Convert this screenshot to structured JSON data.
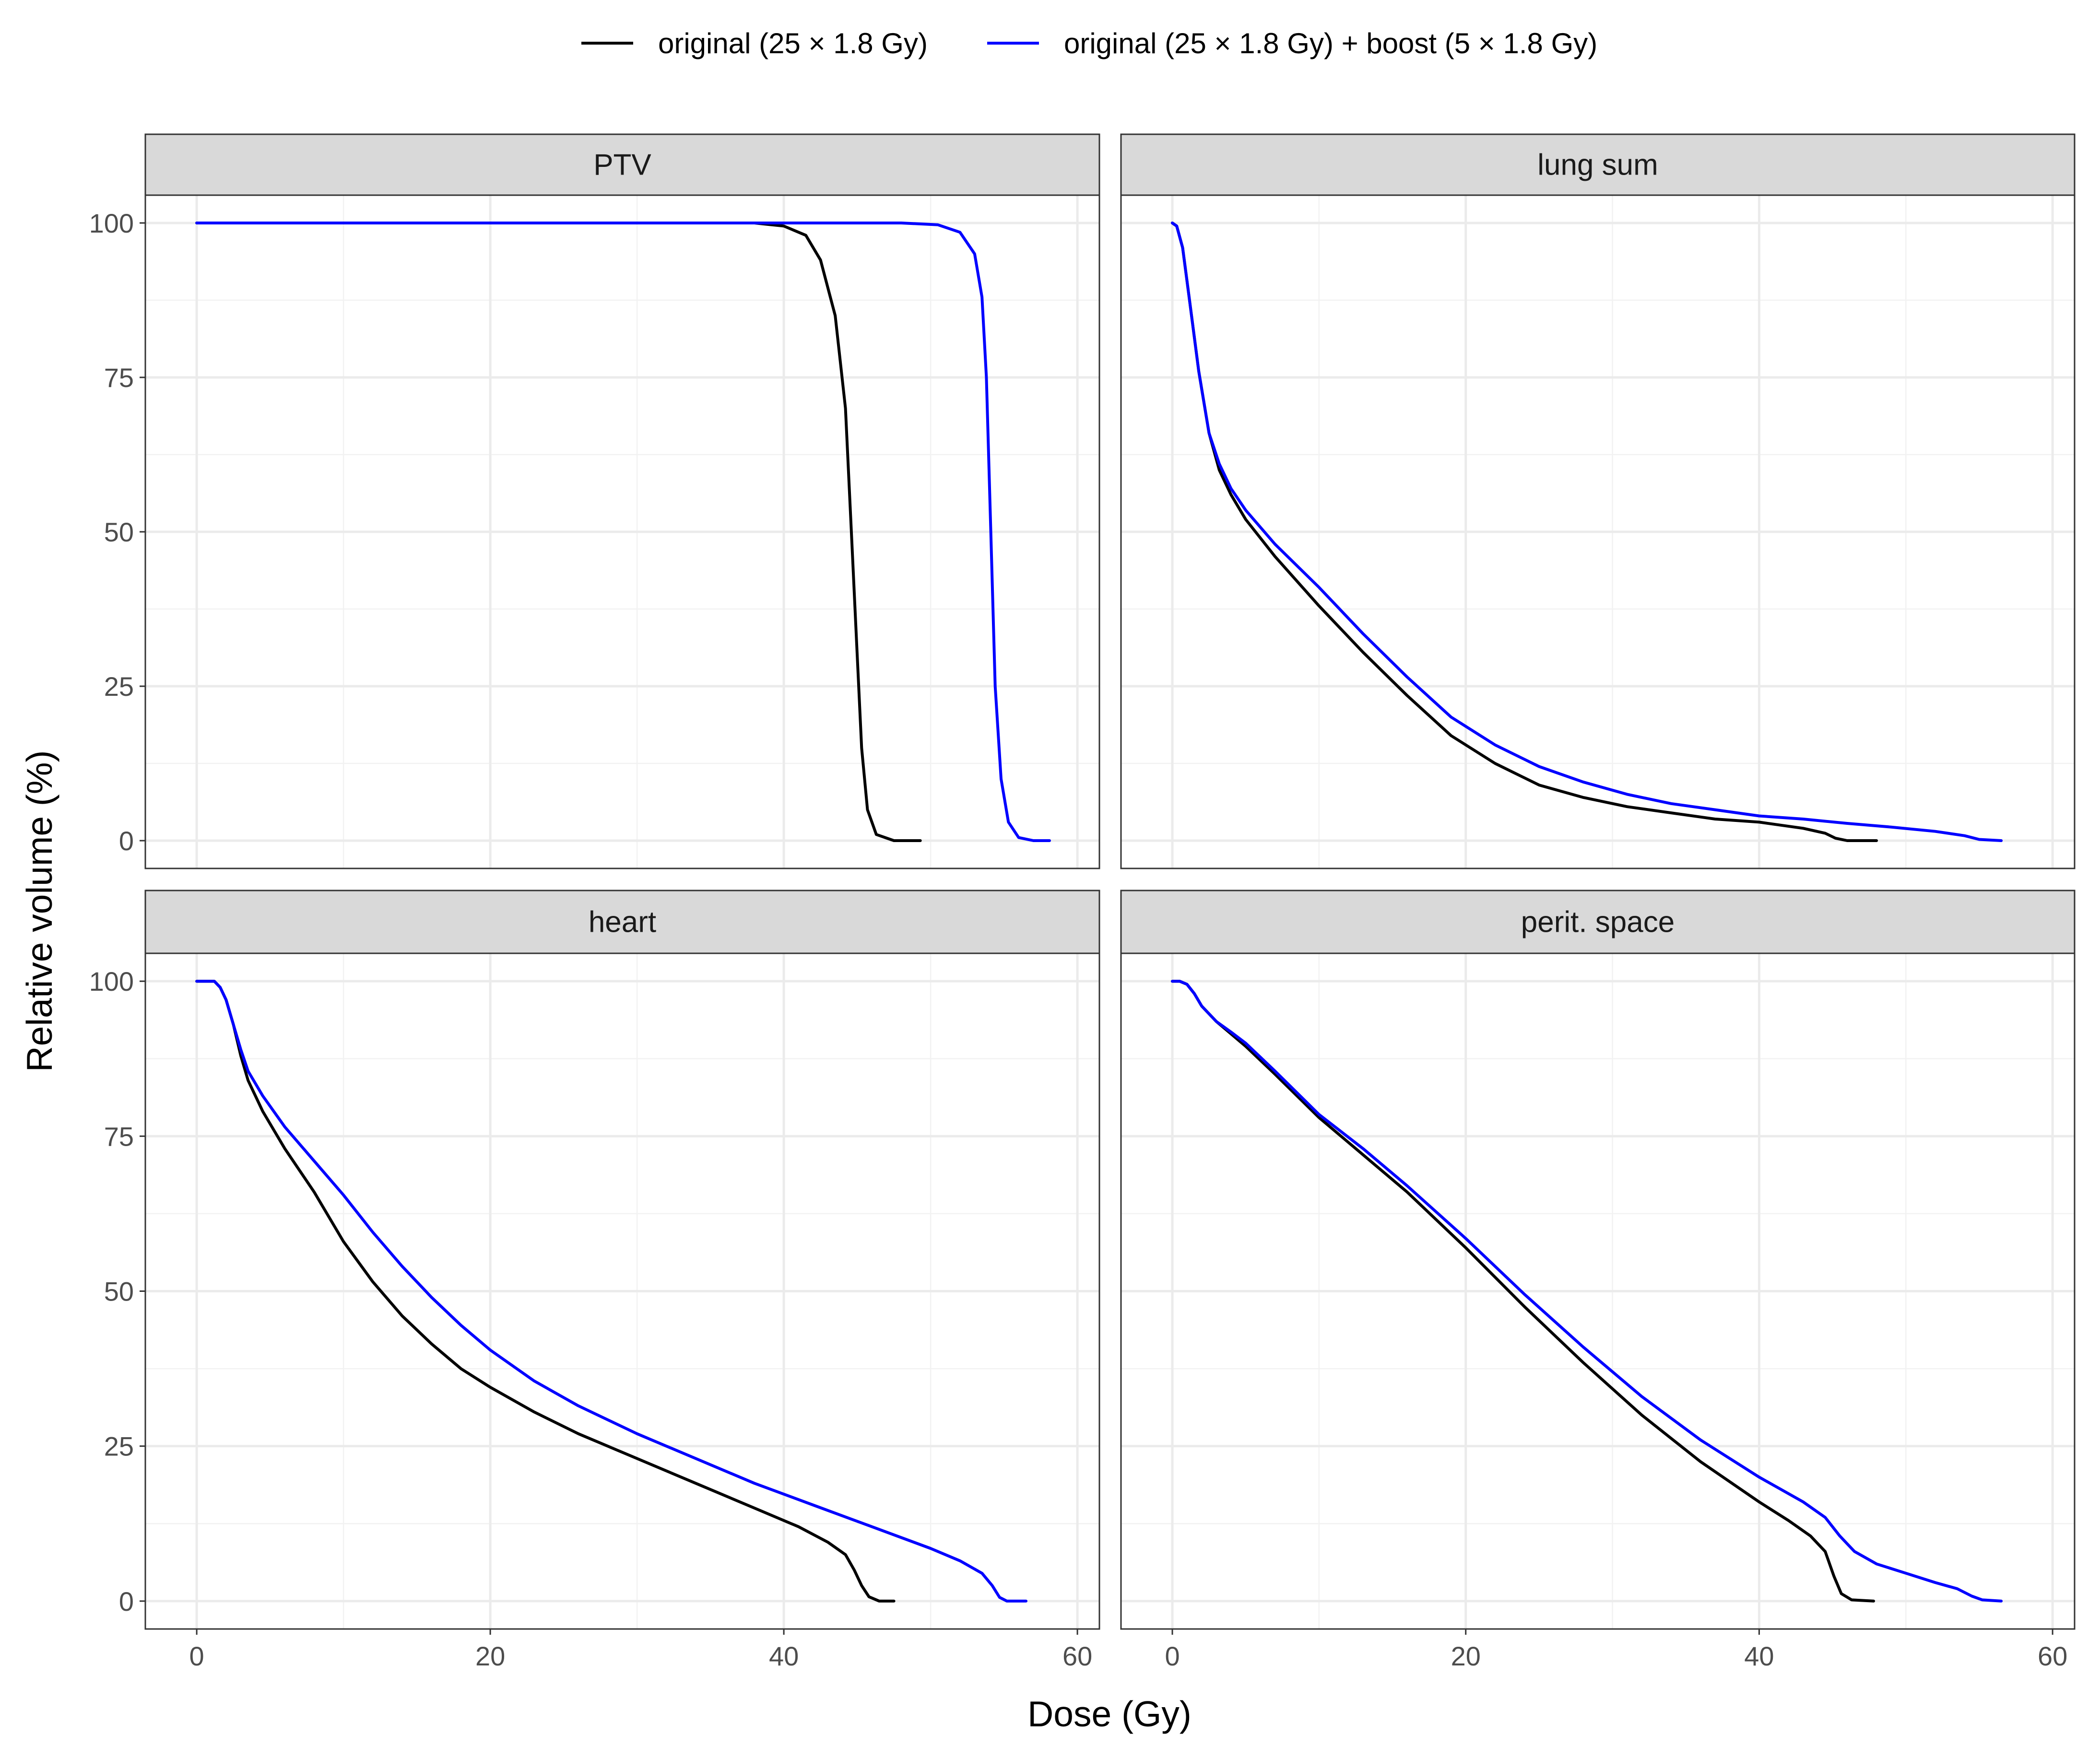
{
  "chart_data": {
    "type": "line",
    "xlabel": "Dose (Gy)",
    "ylabel": "Relative volume (%)",
    "xlim": [
      -3.5,
      61.5
    ],
    "ylim": [
      -4.5,
      104.5
    ],
    "x_ticks": [
      0,
      20,
      40,
      60
    ],
    "y_ticks": [
      0,
      25,
      50,
      75,
      100
    ],
    "grid": true,
    "legend": "top",
    "series_legend": [
      {
        "name": "original (25 × 1.8 Gy)",
        "color": "#000000"
      },
      {
        "name": "original (25 × 1.8 Gy) + boost (5 × 1.8 Gy)",
        "color": "#0000FF"
      }
    ],
    "panels": [
      {
        "title": "PTV",
        "series": [
          {
            "name": "original (25 × 1.8 Gy)",
            "color": "#000000",
            "points": [
              [
                0,
                100
              ],
              [
                38,
                100
              ],
              [
                40,
                99.5
              ],
              [
                41.5,
                98
              ],
              [
                42.5,
                94
              ],
              [
                43.5,
                85
              ],
              [
                44.2,
                70
              ],
              [
                44.6,
                50
              ],
              [
                45,
                30
              ],
              [
                45.3,
                15
              ],
              [
                45.7,
                5
              ],
              [
                46.3,
                1
              ],
              [
                47.5,
                0
              ],
              [
                49.3,
                0
              ]
            ]
          },
          {
            "name": "original (25 × 1.8 Gy) + boost (5 × 1.8 Gy)",
            "color": "#0000FF",
            "points": [
              [
                0,
                100
              ],
              [
                48,
                100
              ],
              [
                50.5,
                99.7
              ],
              [
                52,
                98.5
              ],
              [
                53,
                95
              ],
              [
                53.5,
                88
              ],
              [
                53.8,
                75
              ],
              [
                54.1,
                50
              ],
              [
                54.4,
                25
              ],
              [
                54.8,
                10
              ],
              [
                55.3,
                3
              ],
              [
                56,
                0.5
              ],
              [
                57,
                0
              ],
              [
                58.1,
                0
              ]
            ]
          }
        ]
      },
      {
        "title": "lung sum",
        "series": [
          {
            "name": "original (25 × 1.8 Gy)",
            "color": "#000000",
            "points": [
              [
                0,
                100
              ],
              [
                0.3,
                99.5
              ],
              [
                0.7,
                96
              ],
              [
                1.2,
                87
              ],
              [
                1.8,
                76
              ],
              [
                2.5,
                66
              ],
              [
                3.2,
                60
              ],
              [
                4,
                56
              ],
              [
                5,
                52
              ],
              [
                7,
                46
              ],
              [
                10,
                38
              ],
              [
                13,
                30.5
              ],
              [
                16,
                23.5
              ],
              [
                19,
                17
              ],
              [
                22,
                12.5
              ],
              [
                25,
                9
              ],
              [
                28,
                7
              ],
              [
                31,
                5.5
              ],
              [
                34,
                4.5
              ],
              [
                37,
                3.5
              ],
              [
                40,
                3
              ],
              [
                43,
                2
              ],
              [
                44.5,
                1.2
              ],
              [
                45.2,
                0.4
              ],
              [
                46,
                0
              ],
              [
                48,
                0
              ]
            ]
          },
          {
            "name": "original (25 × 1.8 Gy) + boost (5 × 1.8 Gy)",
            "color": "#0000FF",
            "points": [
              [
                0,
                100
              ],
              [
                0.3,
                99.5
              ],
              [
                0.7,
                96
              ],
              [
                1.2,
                87
              ],
              [
                1.8,
                76
              ],
              [
                2.5,
                66
              ],
              [
                3.2,
                61
              ],
              [
                4,
                57
              ],
              [
                5,
                53.5
              ],
              [
                7,
                48
              ],
              [
                10,
                41
              ],
              [
                13,
                33.5
              ],
              [
                16,
                26.5
              ],
              [
                19,
                20
              ],
              [
                22,
                15.5
              ],
              [
                25,
                12
              ],
              [
                28,
                9.5
              ],
              [
                31,
                7.5
              ],
              [
                34,
                6
              ],
              [
                37,
                5
              ],
              [
                40,
                4
              ],
              [
                43,
                3.5
              ],
              [
                46,
                2.8
              ],
              [
                49,
                2.2
              ],
              [
                52,
                1.5
              ],
              [
                54,
                0.8
              ],
              [
                55,
                0.2
              ],
              [
                56.5,
                0
              ]
            ]
          }
        ]
      },
      {
        "title": "heart",
        "series": [
          {
            "name": "original (25 × 1.8 Gy)",
            "color": "#000000",
            "points": [
              [
                0,
                100
              ],
              [
                1.2,
                100
              ],
              [
                1.6,
                99
              ],
              [
                2,
                97
              ],
              [
                2.5,
                93
              ],
              [
                3,
                88
              ],
              [
                3.5,
                84
              ],
              [
                4.5,
                79
              ],
              [
                6,
                73
              ],
              [
                8,
                66
              ],
              [
                10,
                58
              ],
              [
                12,
                51.5
              ],
              [
                14,
                46
              ],
              [
                16,
                41.5
              ],
              [
                18,
                37.5
              ],
              [
                20,
                34.5
              ],
              [
                23,
                30.5
              ],
              [
                26,
                27
              ],
              [
                30,
                23
              ],
              [
                34,
                19
              ],
              [
                38,
                15
              ],
              [
                41,
                12
              ],
              [
                43,
                9.5
              ],
              [
                44.2,
                7.5
              ],
              [
                44.8,
                5
              ],
              [
                45.3,
                2.5
              ],
              [
                45.8,
                0.7
              ],
              [
                46.5,
                0
              ],
              [
                47.5,
                0
              ]
            ]
          },
          {
            "name": "original (25 × 1.8 Gy) + boost (5 × 1.8 Gy)",
            "color": "#0000FF",
            "points": [
              [
                0,
                100
              ],
              [
                1.2,
                100
              ],
              [
                1.6,
                99
              ],
              [
                2,
                97
              ],
              [
                2.5,
                93
              ],
              [
                3,
                89
              ],
              [
                3.5,
                85.5
              ],
              [
                4.5,
                81.5
              ],
              [
                6,
                76.5
              ],
              [
                8,
                71
              ],
              [
                10,
                65.5
              ],
              [
                12,
                59.5
              ],
              [
                14,
                54
              ],
              [
                16,
                49
              ],
              [
                18,
                44.5
              ],
              [
                20,
                40.5
              ],
              [
                23,
                35.5
              ],
              [
                26,
                31.5
              ],
              [
                30,
                27
              ],
              [
                34,
                23
              ],
              [
                38,
                19
              ],
              [
                42,
                15.5
              ],
              [
                46,
                12
              ],
              [
                50,
                8.5
              ],
              [
                52,
                6.5
              ],
              [
                53.5,
                4.5
              ],
              [
                54.2,
                2.5
              ],
              [
                54.7,
                0.6
              ],
              [
                55.2,
                0
              ],
              [
                56.5,
                0
              ]
            ]
          }
        ]
      },
      {
        "title": "perit. space",
        "series": [
          {
            "name": "original (25 × 1.8 Gy)",
            "color": "#000000",
            "points": [
              [
                0,
                100
              ],
              [
                0.5,
                100
              ],
              [
                1,
                99.5
              ],
              [
                1.5,
                98
              ],
              [
                2,
                96
              ],
              [
                3,
                93.5
              ],
              [
                4,
                91.5
              ],
              [
                5,
                89.5
              ],
              [
                7,
                85
              ],
              [
                10,
                78
              ],
              [
                13,
                72
              ],
              [
                16,
                66
              ],
              [
                20,
                57
              ],
              [
                24,
                47.5
              ],
              [
                28,
                38.5
              ],
              [
                32,
                30
              ],
              [
                36,
                22.5
              ],
              [
                40,
                16
              ],
              [
                42,
                13
              ],
              [
                43.5,
                10.5
              ],
              [
                44.5,
                8
              ],
              [
                45.1,
                4
              ],
              [
                45.6,
                1.2
              ],
              [
                46.3,
                0.2
              ],
              [
                47.8,
                0
              ]
            ]
          },
          {
            "name": "original (25 × 1.8 Gy) + boost (5 × 1.8 Gy)",
            "color": "#0000FF",
            "points": [
              [
                0,
                100
              ],
              [
                0.5,
                100
              ],
              [
                1,
                99.5
              ],
              [
                1.5,
                98
              ],
              [
                2,
                96
              ],
              [
                3,
                93.5
              ],
              [
                4,
                91.8
              ],
              [
                5,
                90
              ],
              [
                7,
                85.5
              ],
              [
                10,
                78.5
              ],
              [
                13,
                73
              ],
              [
                16,
                67
              ],
              [
                20,
                58.5
              ],
              [
                24,
                49.5
              ],
              [
                28,
                41
              ],
              [
                32,
                33
              ],
              [
                36,
                26
              ],
              [
                40,
                20
              ],
              [
                43,
                16
              ],
              [
                44.5,
                13.5
              ],
              [
                45.5,
                10.5
              ],
              [
                46.5,
                8
              ],
              [
                48,
                6
              ],
              [
                50,
                4.5
              ],
              [
                52,
                3
              ],
              [
                53.5,
                2
              ],
              [
                54.5,
                0.8
              ],
              [
                55.2,
                0.2
              ],
              [
                56.5,
                0
              ]
            ]
          }
        ]
      }
    ]
  }
}
